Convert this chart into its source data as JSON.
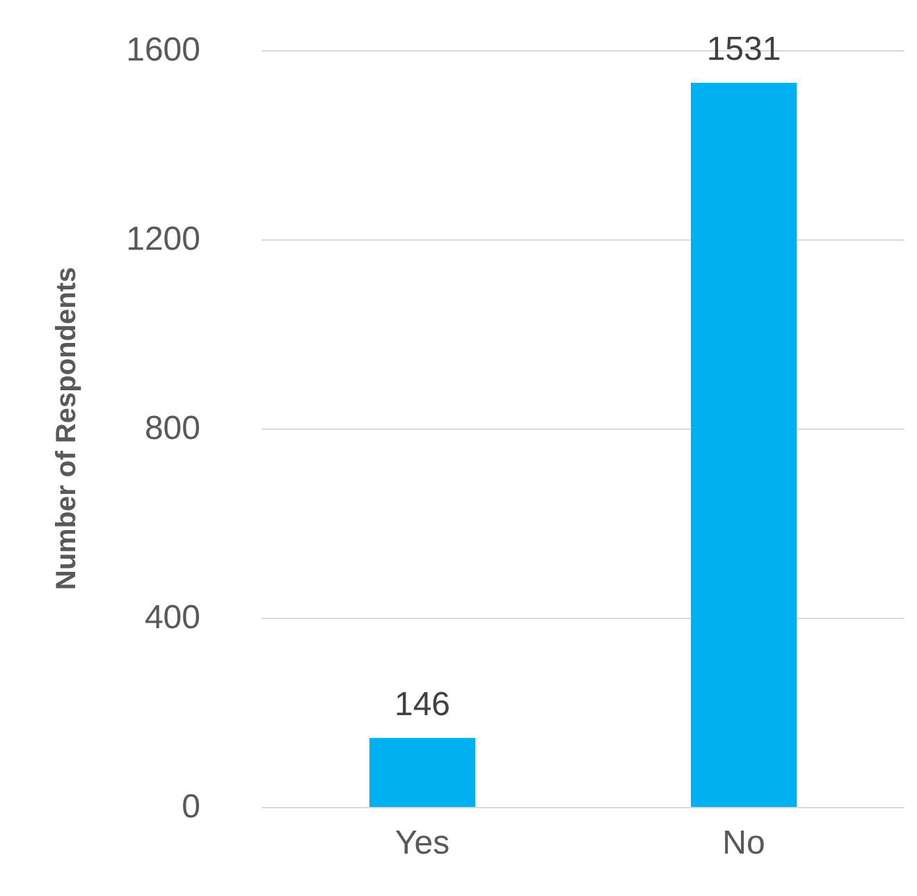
{
  "chart_data": {
    "type": "bar",
    "ylabel": "Number of Respondents",
    "categories": [
      "Yes",
      "No"
    ],
    "values": [
      146,
      1531
    ],
    "color": "#00b0f0",
    "ylim": [
      0,
      1600
    ],
    "yticks": [
      0,
      400,
      800,
      1200,
      1600
    ],
    "grid": "y",
    "data_labels": true
  }
}
